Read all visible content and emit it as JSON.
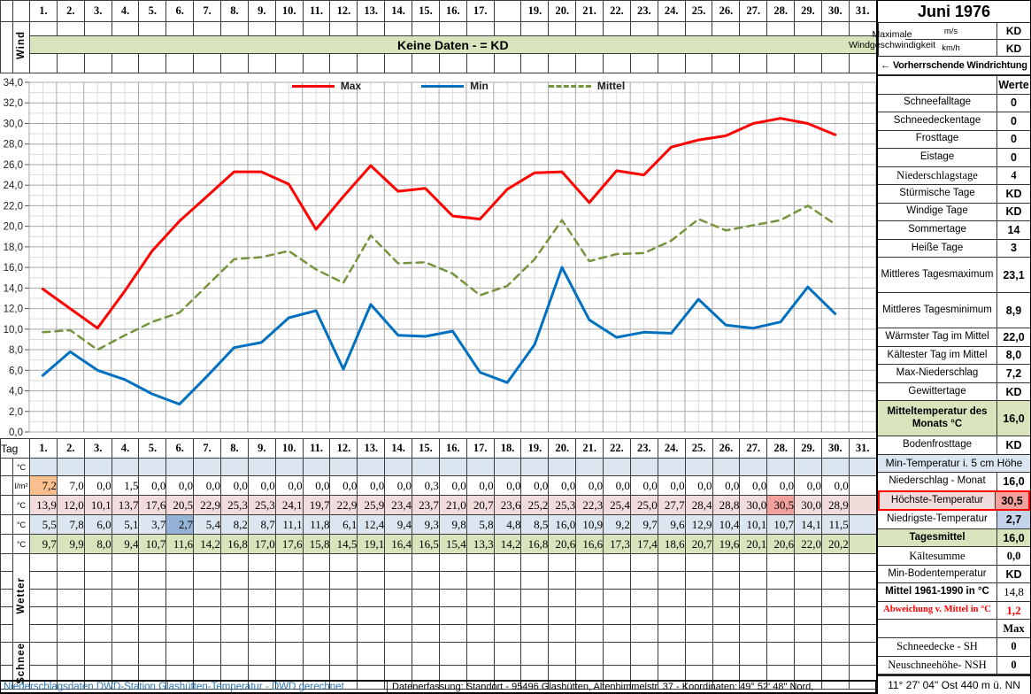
{
  "colors": {
    "banner_green": "#d8e4bc",
    "row_blue": "#dce6f1",
    "row_pink": "#f2dcdb",
    "row_green": "#d8e4bc",
    "hl_orange": "#fabf8f",
    "hl_red": "#f2a19c",
    "hl_blue": "#95b3d7",
    "sb_cold": "#c3d4ea",
    "blue_text": "#2e75b6",
    "red_text": "#ff0000",
    "grid_major": "#a8a8a8",
    "grid_minor": "#dcdcdc"
  },
  "header": {
    "month_title": "Juni 1976",
    "wind_label": "Wind",
    "no_data_banner": "Keine Daten -  = KD",
    "day_headers_top": [
      "1.",
      "2.",
      "3.",
      "4.",
      "5.",
      "6.",
      "7.",
      "8.",
      "9.",
      "10.",
      "11.",
      "12.",
      "13.",
      "14.",
      "15.",
      "16.",
      "17.",
      "",
      "19.",
      "20.",
      "21.",
      "22.",
      "23.",
      "24.",
      "25.",
      "26.",
      "27.",
      "28.",
      "29.",
      "30.",
      "31."
    ],
    "wind_speed_units": [
      "m/s",
      "km/h"
    ],
    "wind_speed_label": "Maximale Windgeschwindigkeit",
    "wind_speed_values": [
      "KD",
      "KD"
    ],
    "wind_direction_label": "←  Vorherrschende Windrichtung"
  },
  "chart_data": {
    "type": "line",
    "days": [
      1,
      2,
      3,
      4,
      5,
      6,
      7,
      8,
      9,
      10,
      11,
      12,
      13,
      14,
      15,
      16,
      17,
      18,
      19,
      20,
      21,
      22,
      23,
      24,
      25,
      26,
      27,
      28,
      29,
      30
    ],
    "series": [
      {
        "name": "Max",
        "color": "#ff0000",
        "dash": null,
        "values": [
          13.9,
          12.0,
          10.1,
          13.7,
          17.6,
          20.5,
          22.9,
          25.3,
          25.3,
          24.1,
          19.7,
          22.9,
          25.9,
          23.4,
          23.7,
          21.0,
          20.7,
          23.6,
          25.2,
          25.3,
          22.3,
          25.4,
          25.0,
          27.7,
          28.4,
          28.8,
          30.0,
          30.5,
          30.0,
          28.9
        ]
      },
      {
        "name": "Min",
        "color": "#0070c0",
        "dash": null,
        "values": [
          5.5,
          7.8,
          6.0,
          5.1,
          3.7,
          2.7,
          5.4,
          8.2,
          8.7,
          11.1,
          11.8,
          6.1,
          12.4,
          9.4,
          9.3,
          9.8,
          5.8,
          4.8,
          8.5,
          16.0,
          10.9,
          9.2,
          9.7,
          9.6,
          12.9,
          10.4,
          10.1,
          10.7,
          14.1,
          11.5
        ]
      },
      {
        "name": "Mittel",
        "color": "#77933c",
        "dash": "8 6",
        "values": [
          9.7,
          9.9,
          8.0,
          9.4,
          10.7,
          11.6,
          14.2,
          16.8,
          17.0,
          17.6,
          15.8,
          14.5,
          19.1,
          16.4,
          16.5,
          15.4,
          13.3,
          14.2,
          16.8,
          20.6,
          16.6,
          17.3,
          17.4,
          18.6,
          20.7,
          19.6,
          20.1,
          20.6,
          22.0,
          20.2
        ]
      }
    ],
    "ylim": [
      0,
      34
    ],
    "ytick_step": 2,
    "decimal_separator": ",",
    "grid": true,
    "legend_position": "top-center"
  },
  "table": {
    "corner_label": "Tag",
    "day_headers": [
      "1.",
      "2.",
      "3.",
      "4.",
      "5.",
      "6.",
      "7.",
      "8.",
      "9.",
      "10.",
      "11.",
      "12.",
      "13.",
      "14.",
      "15.",
      "16.",
      "17.",
      "18.",
      "19.",
      "20.",
      "21.",
      "22.",
      "23.",
      "24.",
      "25.",
      "26.",
      "27.",
      "28.",
      "29.",
      "30.",
      "31."
    ],
    "unit_rows": [
      {
        "unit": "°C",
        "kind": "ground_min",
        "values": []
      },
      {
        "unit": "l/m²",
        "kind": "precip",
        "values": [
          "7,2",
          "7,0",
          "0,0",
          "1,5",
          "0,0",
          "0,0",
          "0,0",
          "0,0",
          "0,0",
          "0,0",
          "0,0",
          "0,0",
          "0,0",
          "0,0",
          "0,3",
          "0,0",
          "0,0",
          "0,0",
          "0,0",
          "0,0",
          "0,0",
          "0,0",
          "0,0",
          "0,0",
          "0,0",
          "0,0",
          "0,0",
          "0,0",
          "0,0",
          "0,0",
          ""
        ]
      },
      {
        "unit": "°C",
        "kind": "max_series"
      },
      {
        "unit": "°C",
        "kind": "min_series"
      },
      {
        "unit": "°C",
        "kind": "mean_series"
      }
    ],
    "highlights": {
      "precip_day": 1,
      "max_day": 28,
      "min_day": 6
    },
    "wetter_label": "Wetter",
    "wetter_rows": 5,
    "schnee_label": "Schnee",
    "schnee_rows": 2
  },
  "sidebar": {
    "rows": [
      {
        "label": "",
        "value": "Werte",
        "variant": "werte"
      },
      {
        "label": "Schneefalltage",
        "value": "0"
      },
      {
        "label": "Schneedeckentage",
        "value": "0"
      },
      {
        "label": "Frosttage",
        "value": "0"
      },
      {
        "label": "Eistage",
        "value": "0"
      },
      {
        "label": "Niederschlagstage",
        "value": "4",
        "serif": true
      },
      {
        "label": "Stürmische Tage",
        "value": "KD"
      },
      {
        "label": "Windige Tage",
        "value": "KD"
      },
      {
        "label": "Sommertage",
        "value": "14"
      },
      {
        "label": "Heiße Tage",
        "value": "3"
      },
      {
        "label": "Mittleres Tagesmaximum",
        "value": "23,1",
        "tall": true
      },
      {
        "label": "Mittleres Tagesminimum",
        "value": "8,9",
        "tall": true
      },
      {
        "label": "Wärmster Tag im Mittel",
        "value": "22,0"
      },
      {
        "label": "Kältester Tag im Mittel",
        "value": "8,0"
      },
      {
        "label": "Max-Niederschlag",
        "value": "7,2"
      },
      {
        "label": "Gewittertage",
        "value": "KD"
      },
      {
        "label": "Mitteltemperatur des Monats °C",
        "value": "16,0",
        "tall": true,
        "variant": "green"
      },
      {
        "label": "Bodenfrosttage",
        "value": "KD"
      },
      {
        "label": "Min-Temperatur i. 5 cm Höhe",
        "value": null,
        "variant": "span-blue"
      },
      {
        "label": "Niederschlag - Monat",
        "value": "16,0"
      },
      {
        "label": "Höchste-Temperatur",
        "value": "30,5",
        "variant": "hot"
      },
      {
        "label": "Niedrigste-Temperatur",
        "value": "2,7",
        "variant": "cold"
      },
      {
        "label": "Tagesmittel",
        "value": "16,0",
        "variant": "green"
      },
      {
        "label": "Kältesumme",
        "value": "0,0",
        "serif": true
      },
      {
        "label": "Min-Bodentemperatur",
        "value": "KD"
      },
      {
        "label": "Mittel 1961-1990 in °C",
        "value": "14,8",
        "variant": "bold"
      },
      {
        "label": "Abweichung v. Mittel in °C",
        "value": "1,2",
        "variant": "deviation"
      },
      {
        "label": "",
        "value": "Max",
        "variant": "maxh"
      },
      {
        "label": "Schneedecke -   SH",
        "value": "0",
        "serif": true
      },
      {
        "label": "Neuschneehöhe- NSH",
        "value": "0",
        "serif": true
      },
      {
        "label": "11° 27' 04\" Ost  440 m ü. NN",
        "value": null,
        "variant": "coords"
      }
    ]
  },
  "footer": {
    "left": "Niederschlagsdaten DWD-Station Glashütten-Temperatur -  DWD gerechnet",
    "right": "Datenerfassung:  Standort -  95496  Glashütten, Altenhimmelstr. 37 - Koordinaten:  49° 52' 48\" Nord,"
  }
}
